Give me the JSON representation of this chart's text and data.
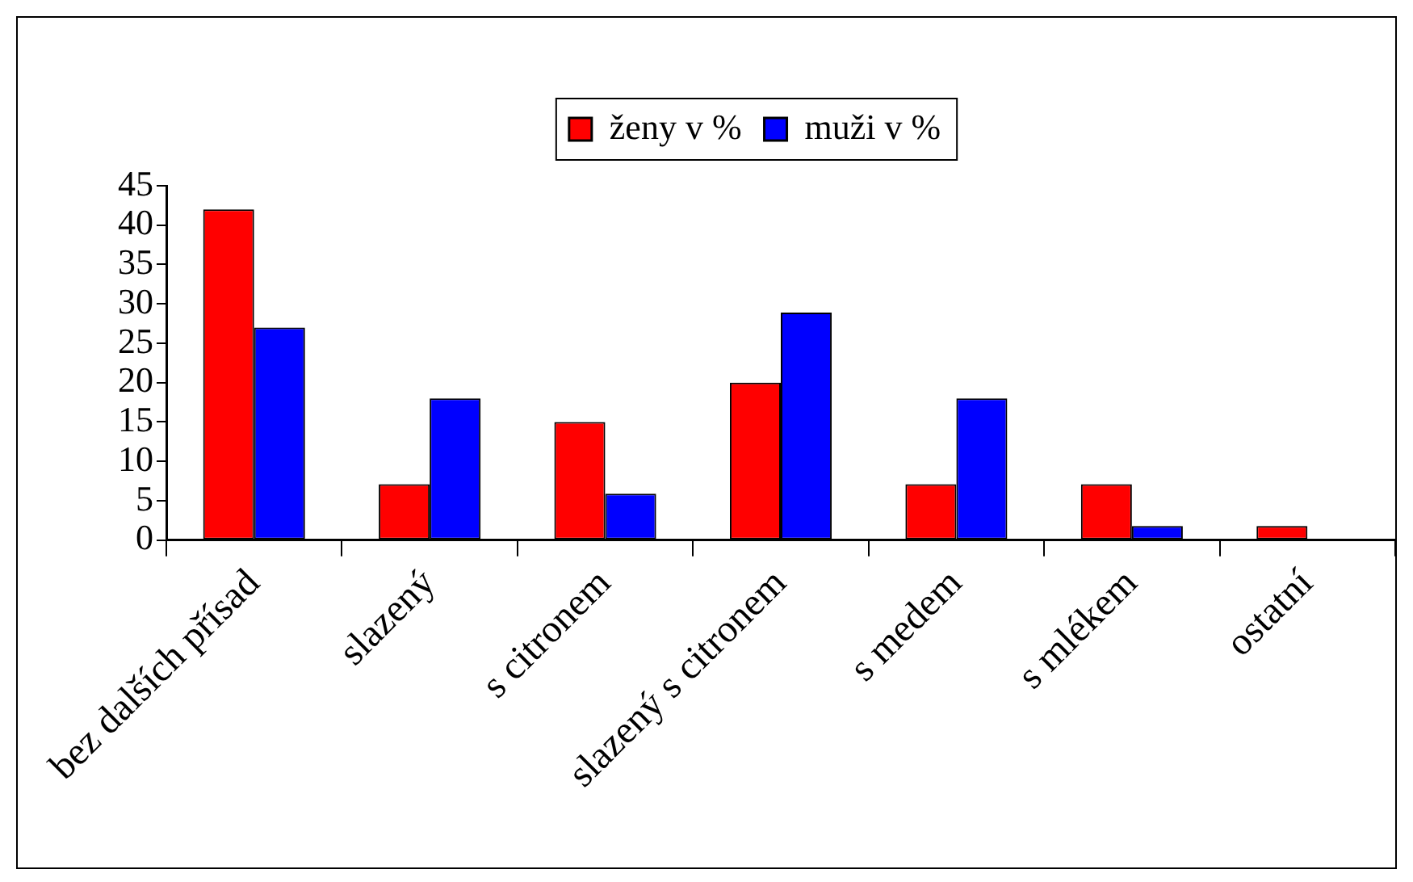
{
  "chart_data": {
    "type": "bar",
    "categories": [
      "bez dalších přísad",
      "slazený",
      "s citronem",
      "slazený s citronem",
      "s medem",
      "s mlékem",
      "ostatní"
    ],
    "series": [
      {
        "name": "ženy v %",
        "color": "#ff0000",
        "values": [
          42,
          7.1,
          15,
          20,
          7.1,
          7.1,
          1.8
        ]
      },
      {
        "name": "muži v %",
        "color": "#0000ff",
        "values": [
          27,
          18,
          5.9,
          28.9,
          18,
          1.8,
          null
        ]
      }
    ],
    "ylim": [
      0,
      45
    ],
    "yticks": [
      0,
      5,
      10,
      15,
      20,
      25,
      30,
      35,
      40,
      45
    ],
    "grid": false,
    "legend": "top"
  }
}
